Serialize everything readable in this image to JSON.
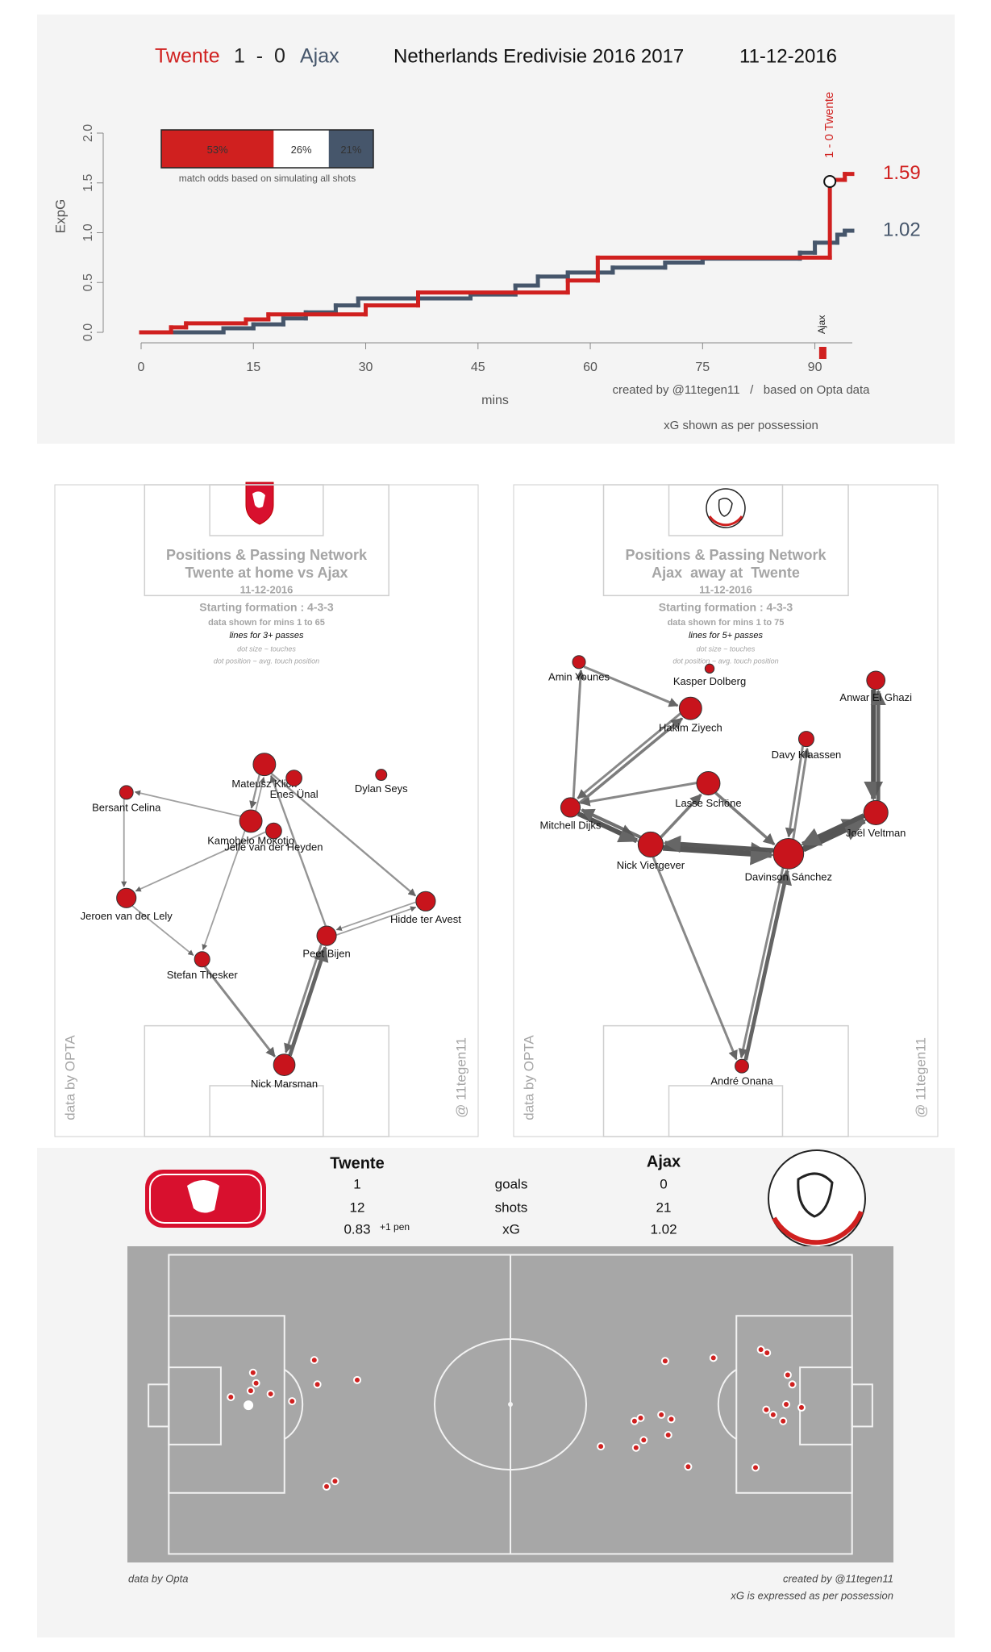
{
  "chart_data": {
    "type": "line",
    "step": true,
    "score": "1  -  0",
    "competition": "Netherlands Eredivisie 2016 2017",
    "date": "11-12-2016",
    "xlabel": "mins",
    "ylabel": "ExpG",
    "xlim": [
      0,
      95
    ],
    "xticks": [
      0,
      15,
      30,
      45,
      60,
      75,
      90
    ],
    "ylim": [
      0,
      2
    ],
    "yticks": [
      {
        "value": 0,
        "label": "0.0"
      },
      {
        "value": 0.5,
        "label": "0.5"
      },
      {
        "value": 1,
        "label": "1.0"
      },
      {
        "value": 1.5,
        "label": "1.5"
      },
      {
        "value": 2,
        "label": "2.0"
      }
    ],
    "series": [
      {
        "name": "Twente",
        "color": "#d0201f",
        "x": [
          0,
          4,
          6,
          14,
          17,
          30,
          37,
          57,
          61,
          92,
          94
        ],
        "values": [
          0,
          0.05,
          0.09,
          0.13,
          0.18,
          0.27,
          0.4,
          0.52,
          0.75,
          1.53,
          1.59
        ]
      },
      {
        "name": "Ajax",
        "color": "#46566b",
        "x": [
          0,
          11,
          15,
          19,
          22,
          26,
          29,
          44,
          50,
          53,
          57,
          63,
          70,
          75,
          88,
          90,
          93,
          94
        ],
        "values": [
          0,
          0.04,
          0.08,
          0.14,
          0.2,
          0.27,
          0.34,
          0.38,
          0.47,
          0.56,
          0.6,
          0.65,
          0.7,
          0.74,
          0.8,
          0.9,
          0.98,
          1.02
        ]
      }
    ],
    "odds": {
      "values": [
        53,
        26,
        21
      ],
      "value_labels": [
        "53%",
        "26%",
        "21%"
      ],
      "colors": [
        "#d0201f",
        "#ffffff",
        "#46566b"
      ],
      "caption": "match odds based on simulating all shots"
    },
    "annotations": [
      {
        "x": 92,
        "label": "1 - 0 Twente",
        "color": "#d0201f"
      },
      {
        "x": 91,
        "label": "Ajax",
        "color": "#222222"
      }
    ],
    "credits": "created by @11tegen11   /   based on Opta data",
    "note": "xG shown as per possession"
  },
  "networks": [
    {
      "title": "Positions & Passing Network",
      "subtitle": "Twente at home vs Ajax",
      "date": "11-12-2016",
      "formation": "Starting formation : 4-3-3",
      "data_note": "data shown for mins 1 to 65",
      "lines_note": "lines for 3+ passes",
      "size_note": "dot size ~ touches",
      "position_note": "dot position ~ avg. touch position",
      "source": "data by OPTA",
      "author": "@ 11tegen11",
      "players": [
        {
          "name": "Mateusz Klich",
          "x": 49.5,
          "y": 42.9,
          "touches": 60
        },
        {
          "name": "Enes Ünal",
          "x": 56.5,
          "y": 45.0,
          "touches": 30
        },
        {
          "name": "Dylan Seys",
          "x": 77.1,
          "y": 44.5,
          "touches": 15
        },
        {
          "name": "Bersant Celina",
          "x": 16.9,
          "y": 47.2,
          "touches": 22
        },
        {
          "name": "Kamohelo Mokotjo",
          "x": 46.3,
          "y": 51.6,
          "touches": 60
        },
        {
          "name": "Jelle van der Heyden",
          "x": 51.7,
          "y": 53.1,
          "touches": 30
        },
        {
          "name": "Jeroen van der Lely",
          "x": 16.9,
          "y": 63.4,
          "touches": 45
        },
        {
          "name": "Hidde ter Avest",
          "x": 87.6,
          "y": 63.9,
          "touches": 45
        },
        {
          "name": "Peet Bijen",
          "x": 64.2,
          "y": 69.2,
          "touches": 45
        },
        {
          "name": "Stefan Thesker",
          "x": 34.8,
          "y": 72.8,
          "touches": 28
        },
        {
          "name": "Nick Marsman",
          "x": 54.2,
          "y": 89.0,
          "touches": 55
        }
      ],
      "passes": [
        {
          "from": "Nick Marsman",
          "to": "Peet Bijen",
          "count": 8
        },
        {
          "from": "Peet Bijen",
          "to": "Nick Marsman",
          "count": 5
        },
        {
          "from": "Stefan Thesker",
          "to": "Nick Marsman",
          "count": 5
        },
        {
          "from": "Mateusz Klich",
          "to": "Kamohelo Mokotjo",
          "count": 4
        },
        {
          "from": "Kamohelo Mokotjo",
          "to": "Mateusz Klich",
          "count": 3
        },
        {
          "from": "Mateusz Klich",
          "to": "Hidde ter Avest",
          "count": 4
        },
        {
          "from": "Kamohelo Mokotjo",
          "to": "Bersant Celina",
          "count": 3
        },
        {
          "from": "Jeroen van der Lely",
          "to": "Stefan Thesker",
          "count": 3
        },
        {
          "from": "Hidde ter Avest",
          "to": "Peet Bijen",
          "count": 3
        },
        {
          "from": "Peet Bijen",
          "to": "Mateusz Klich",
          "count": 4
        },
        {
          "from": "Bersant Celina",
          "to": "Jeroen van der Lely",
          "count": 3
        },
        {
          "from": "Kamohelo Mokotjo",
          "to": "Stefan Thesker",
          "count": 3
        },
        {
          "from": "Jelle van der Heyden",
          "to": "Jeroen van der Lely",
          "count": 3
        },
        {
          "from": "Peet Bijen",
          "to": "Hidde ter Avest",
          "count": 3
        }
      ]
    },
    {
      "title": "Positions & Passing Network",
      "subtitle": "Ajax  away at  Twente",
      "date": "11-12-2016",
      "formation": "Starting formation : 4-3-3",
      "data_note": "data shown for mins 1 to 75",
      "lines_note": "lines for 5+ passes",
      "size_note": "dot size ~ touches",
      "position_note": "dot position ~ avg. touch position",
      "source": "data by OPTA",
      "author": "@ 11tegen11",
      "players": [
        {
          "name": "Amin Younes",
          "x": 15.4,
          "y": 27.2,
          "touches": 20
        },
        {
          "name": "Kasper Dolberg",
          "x": 46.2,
          "y": 28.2,
          "touches": 10
        },
        {
          "name": "Hakim Ziyech",
          "x": 41.7,
          "y": 34.3,
          "touches": 60
        },
        {
          "name": "Anwar El Ghazi",
          "x": 85.4,
          "y": 30.0,
          "touches": 40
        },
        {
          "name": "Davy Klaassen",
          "x": 69.0,
          "y": 39.0,
          "touches": 28
        },
        {
          "name": "Lasse Schöne",
          "x": 45.9,
          "y": 45.8,
          "touches": 65
        },
        {
          "name": "Mitchell Dijks",
          "x": 13.4,
          "y": 49.5,
          "touches": 45
        },
        {
          "name": "Nick Viergever",
          "x": 32.3,
          "y": 55.2,
          "touches": 75
        },
        {
          "name": "Davinson Sánchez",
          "x": 64.8,
          "y": 56.6,
          "touches": 110
        },
        {
          "name": "Joël Veltman",
          "x": 85.4,
          "y": 50.3,
          "touches": 70
        },
        {
          "name": "André Onana",
          "x": 53.8,
          "y": 89.2,
          "touches": 22
        }
      ],
      "passes": [
        {
          "from": "Nick Viergever",
          "to": "Davinson Sánchez",
          "count": 12
        },
        {
          "from": "Davinson Sánchez",
          "to": "Nick Viergever",
          "count": 9
        },
        {
          "from": "Davinson Sánchez",
          "to": "Joël Veltman",
          "count": 12
        },
        {
          "from": "Joël Veltman",
          "to": "Davinson Sánchez",
          "count": 10
        },
        {
          "from": "Anwar El Ghazi",
          "to": "Joël Veltman",
          "count": 10
        },
        {
          "from": "Joël Veltman",
          "to": "Anwar El Ghazi",
          "count": 8
        },
        {
          "from": "Mitchell Dijks",
          "to": "Nick Viergever",
          "count": 10
        },
        {
          "from": "Nick Viergever",
          "to": "Mitchell Dijks",
          "count": 7
        },
        {
          "from": "André Onana",
          "to": "Davinson Sánchez",
          "count": 8
        },
        {
          "from": "Davinson Sánchez",
          "to": "André Onana",
          "count": 5
        },
        {
          "from": "Lasse Schöne",
          "to": "Davinson Sánchez",
          "count": 6
        },
        {
          "from": "Mitchell Dijks",
          "to": "Hakim Ziyech",
          "count": 6
        },
        {
          "from": "Hakim Ziyech",
          "to": "Mitchell Dijks",
          "count": 5
        },
        {
          "from": "Davinson Sánchez",
          "to": "Davy Klaassen",
          "count": 5
        },
        {
          "from": "Nick Viergever",
          "to": "Lasse Schöne",
          "count": 6
        },
        {
          "from": "Lasse Schöne",
          "to": "Mitchell Dijks",
          "count": 5
        },
        {
          "from": "Mitchell Dijks",
          "to": "Amin Younes",
          "count": 5
        },
        {
          "from": "Amin Younes",
          "to": "Hakim Ziyech",
          "count": 5
        },
        {
          "from": "Davy Klaassen",
          "to": "Davinson Sánchez",
          "count": 5
        },
        {
          "from": "Nick Viergever",
          "to": "André Onana",
          "count": 5
        }
      ]
    }
  ],
  "summary": {
    "labels": [
      "goals",
      "shots",
      "xG"
    ],
    "home": {
      "team": "Twente",
      "goals": 1,
      "shots": 12,
      "xg": 0.83,
      "xg_note": "+1 pen"
    },
    "away": {
      "team": "Ajax",
      "goals": 0,
      "shots": 21,
      "xg": 1.02
    }
  },
  "shot_map": {
    "teams": [
      {
        "name": "Twente",
        "color": "#d0201f",
        "shots": [
          {
            "x": 13.5,
            "y": 47.7
          },
          {
            "x": 16.4,
            "y": 40.0
          },
          {
            "x": 16.8,
            "y": 43.3
          },
          {
            "x": 18.7,
            "y": 46.7
          },
          {
            "x": 21.5,
            "y": 49.0
          },
          {
            "x": 24.4,
            "y": 36.0
          },
          {
            "x": 24.8,
            "y": 43.7
          },
          {
            "x": 30.0,
            "y": 42.3
          },
          {
            "x": 26.0,
            "y": 76.0
          },
          {
            "x": 27.1,
            "y": 74.3
          },
          {
            "x": 15.8,
            "y": 50.3,
            "goal": true
          },
          {
            "x": 16.1,
            "y": 45.7
          }
        ]
      },
      {
        "name": "Ajax",
        "color": "#d0201f",
        "shots": [
          {
            "x": 70.2,
            "y": 36.3
          },
          {
            "x": 76.5,
            "y": 35.3
          },
          {
            "x": 82.7,
            "y": 32.7
          },
          {
            "x": 83.5,
            "y": 33.7
          },
          {
            "x": 86.2,
            "y": 40.7
          },
          {
            "x": 86.8,
            "y": 43.7
          },
          {
            "x": 83.4,
            "y": 51.7
          },
          {
            "x": 84.3,
            "y": 53.3
          },
          {
            "x": 86.0,
            "y": 50.0
          },
          {
            "x": 88.0,
            "y": 51.0
          },
          {
            "x": 85.6,
            "y": 55.3
          },
          {
            "x": 82.0,
            "y": 70.0
          },
          {
            "x": 73.2,
            "y": 69.7
          },
          {
            "x": 70.6,
            "y": 59.7
          },
          {
            "x": 71.0,
            "y": 54.7
          },
          {
            "x": 69.7,
            "y": 53.3
          },
          {
            "x": 67.0,
            "y": 54.3
          },
          {
            "x": 66.2,
            "y": 55.3
          },
          {
            "x": 66.4,
            "y": 63.7
          },
          {
            "x": 67.4,
            "y": 61.3
          },
          {
            "x": 61.8,
            "y": 63.3
          }
        ]
      }
    ],
    "source": "data by Opta",
    "credits": "created by @11tegen11",
    "note": "xG is expressed as per possession"
  }
}
